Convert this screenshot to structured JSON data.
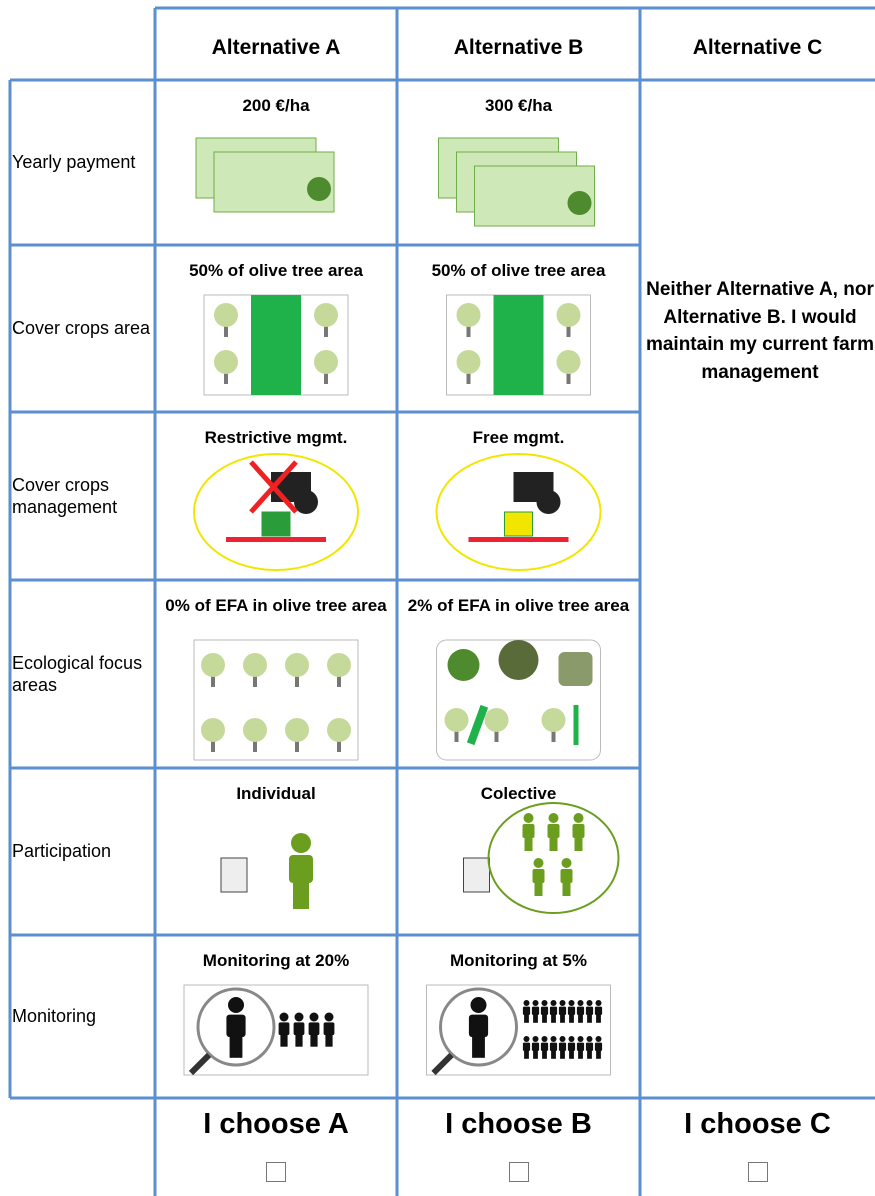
{
  "header": {
    "columns": [
      "Alternative A",
      "Alternative B",
      "Alternative C"
    ]
  },
  "rows": [
    {
      "label": "Yearly payment",
      "a": "200 €/ha",
      "b": "300 €/ha"
    },
    {
      "label": "Cover crops area",
      "a": "50% of olive tree area",
      "b": "50% of olive tree area"
    },
    {
      "label": "Cover crops management",
      "a": "Restrictive mgmt.",
      "b": "Free mgmt."
    },
    {
      "label": "Ecological focus areas",
      "a": "0% of EFA in olive tree area",
      "b": "2% of EFA in olive tree area"
    },
    {
      "label": "Participation",
      "a": "Individual",
      "b": "Colective"
    },
    {
      "label": "Monitoring",
      "a": "Monitoring at 20%",
      "b": "Monitoring at 5%"
    }
  ],
  "alternative_c": "Neither Alternative A, nor Alternative B. I would maintain my current farm management",
  "choices": [
    "I choose A",
    "I choose B",
    "I choose C"
  ]
}
